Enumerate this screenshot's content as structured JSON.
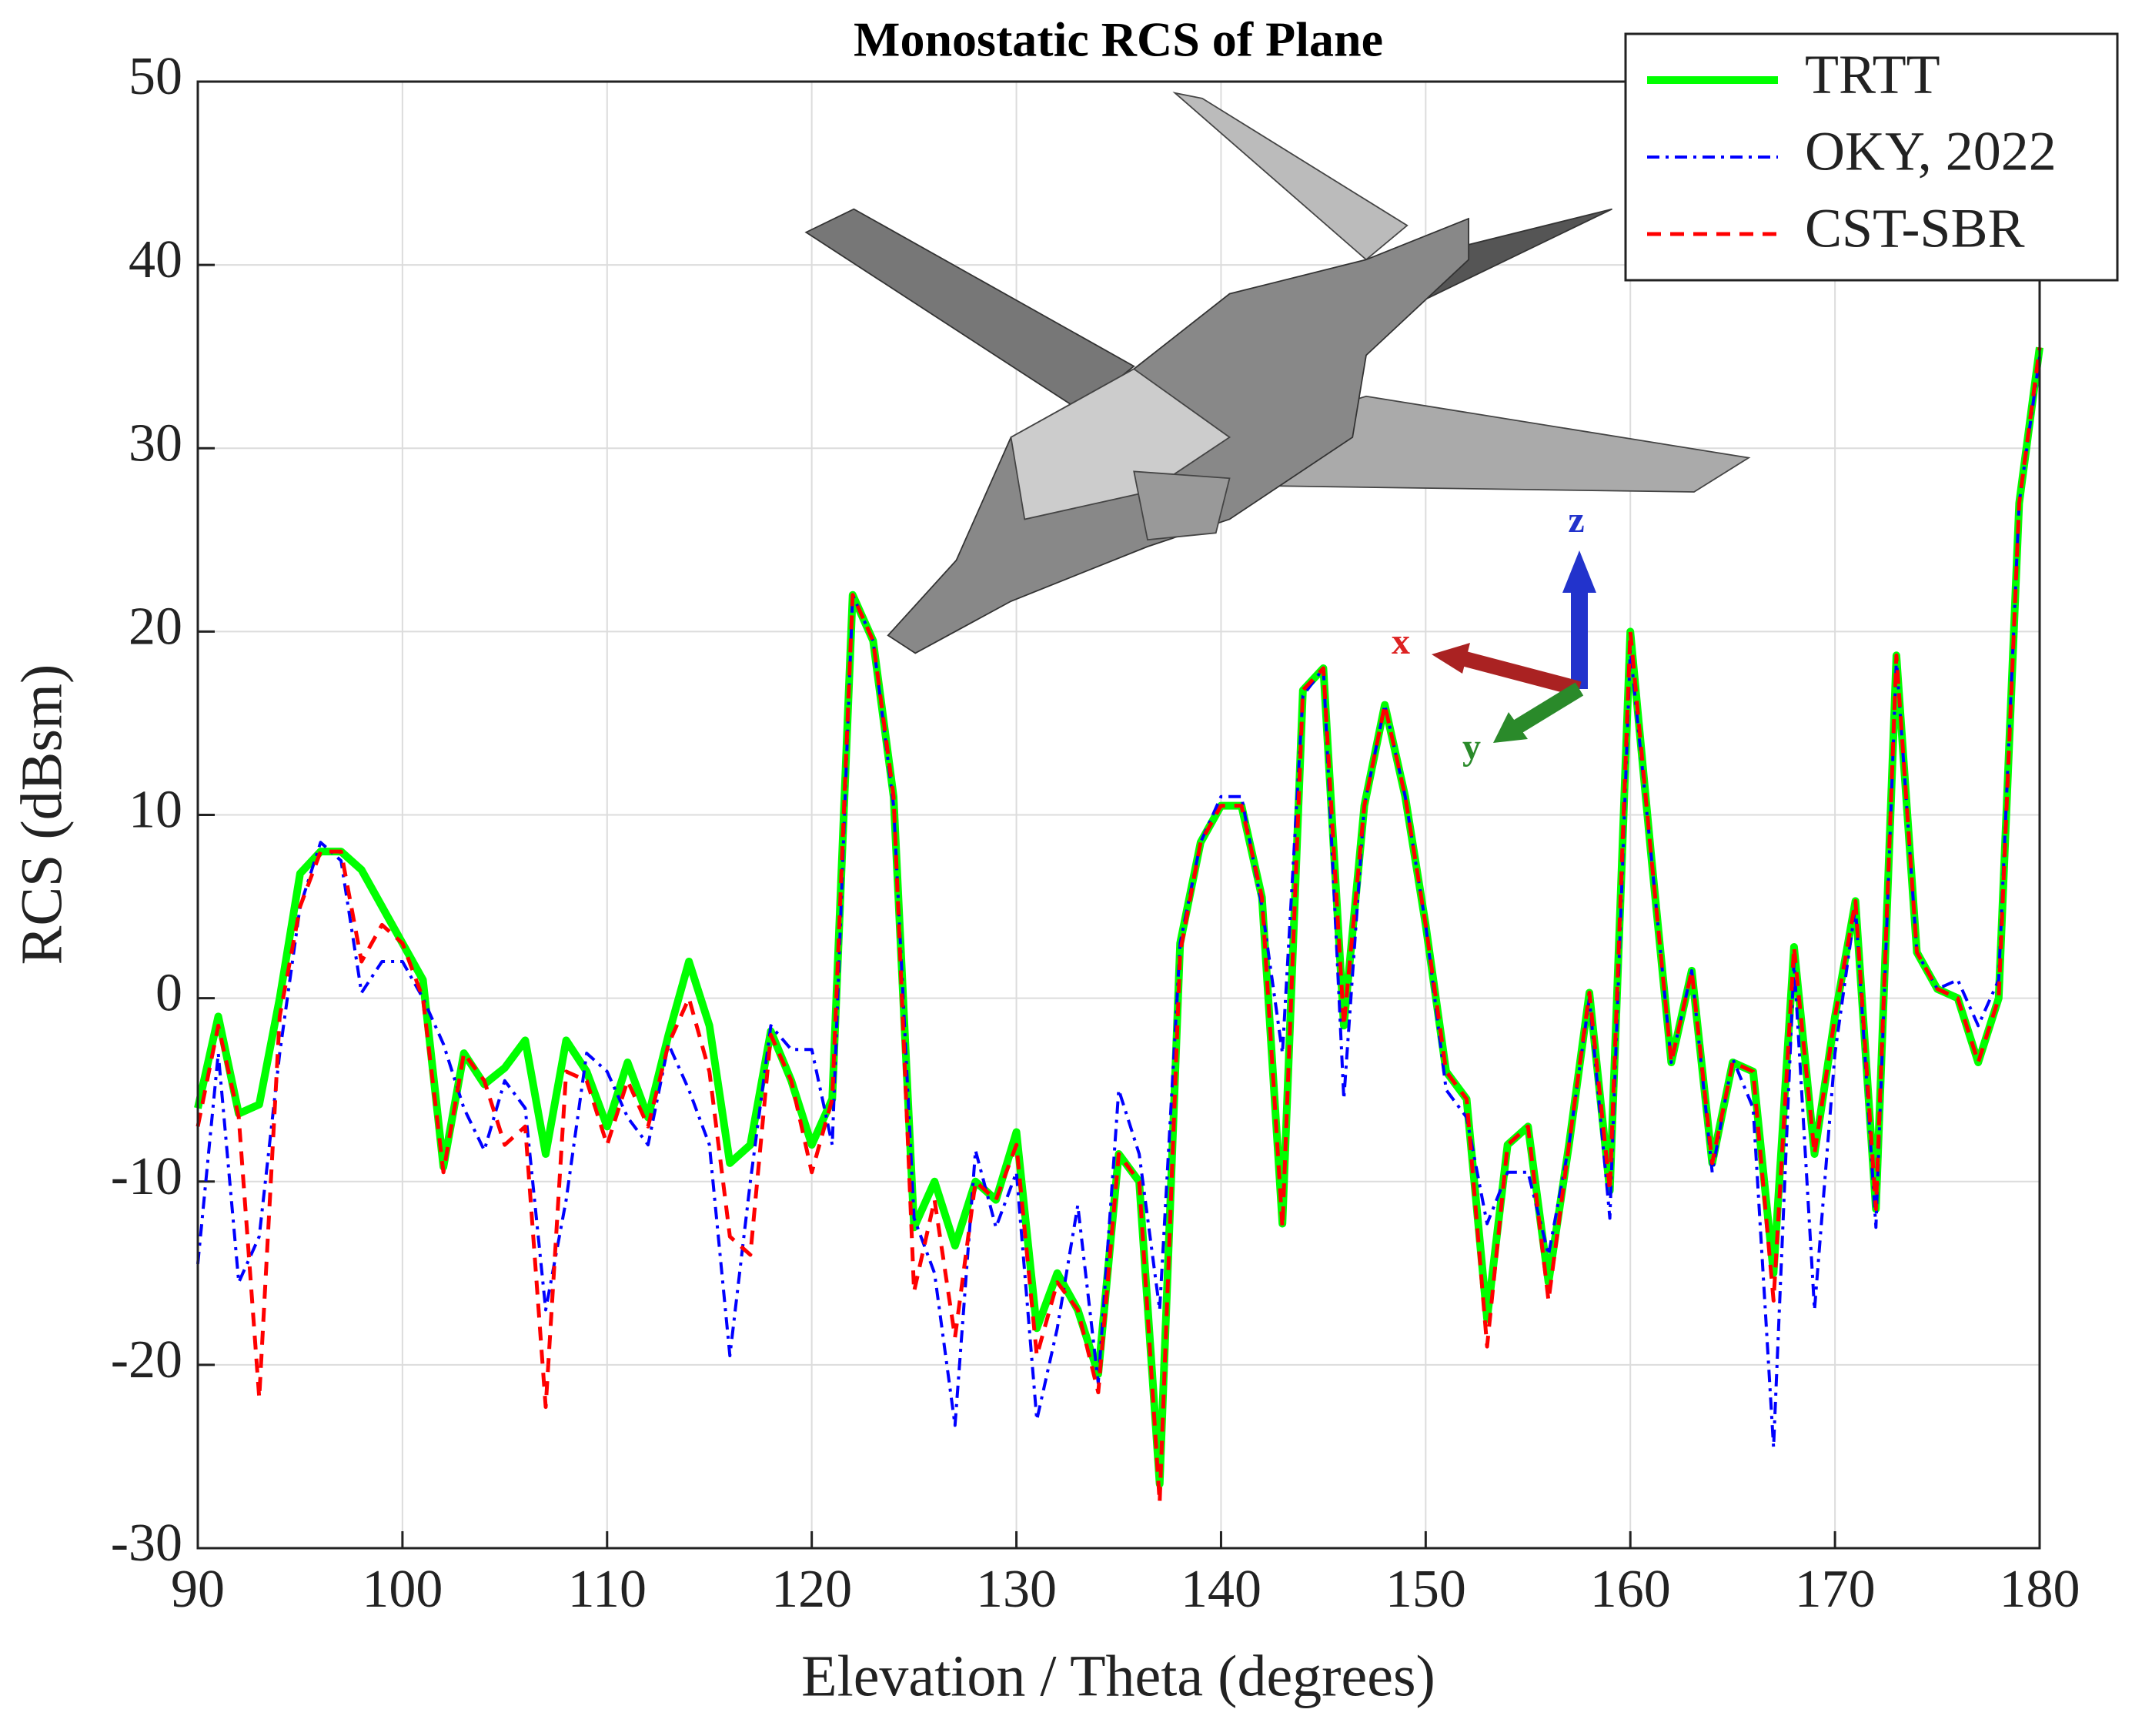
{
  "chart_data": {
    "type": "line",
    "title": "Monostatic RCS of Plane",
    "xlabel": "Elevation / Theta (degrees)",
    "ylabel": "RCS (dBsm)",
    "annotations": [
      "z",
      "x",
      "y"
    ],
    "x": [
      90,
      91,
      92,
      93,
      94,
      95,
      96,
      97,
      98,
      99,
      100,
      101,
      102,
      103,
      104,
      105,
      106,
      107,
      108,
      109,
      110,
      111,
      112,
      113,
      114,
      115,
      116,
      117,
      118,
      119,
      120,
      121,
      122,
      123,
      124,
      125,
      126,
      127,
      128,
      129,
      130,
      131,
      132,
      133,
      134,
      135,
      136,
      137,
      138,
      139,
      140,
      141,
      142,
      143,
      144,
      145,
      146,
      147,
      148,
      149,
      150,
      151,
      152,
      153,
      154,
      155,
      156,
      157,
      158,
      159,
      160,
      161,
      162,
      163,
      164,
      165,
      166,
      167,
      168,
      169,
      170,
      171,
      172,
      173,
      174,
      175,
      176,
      177,
      178,
      179,
      180
    ],
    "series": [
      {
        "name": "TRTT",
        "color": "#00ff00",
        "style": "solid",
        "values": [
          -6,
          -1,
          -6.3,
          -5.8,
          0,
          6.8,
          8,
          8,
          7,
          5,
          3,
          1,
          -9.2,
          -3,
          -4.7,
          -3.8,
          -2.3,
          -8.5,
          -2.3,
          -4,
          -7,
          -3.5,
          -6.5,
          -2,
          2,
          -1.5,
          -9,
          -8,
          -1.8,
          -4.5,
          -8,
          -5.5,
          22,
          19.5,
          11,
          -12.5,
          -10,
          -13.5,
          -10,
          -11,
          -7.3,
          -18,
          -15,
          -17,
          -20.5,
          -8.5,
          -10,
          -26.5,
          3,
          8.5,
          10.5,
          10.5,
          5.5,
          -12.3,
          16.8,
          18,
          -1.5,
          10.5,
          16,
          11,
          4,
          -4,
          -5.5,
          -17.5,
          -8,
          -7,
          -15.5,
          -8,
          0.3,
          -10.5,
          20,
          8,
          -3.5,
          1.5,
          -9,
          -3.5,
          -4,
          -15,
          2.8,
          -8.5,
          -1,
          5.3,
          -11.5,
          18.7,
          2.5,
          0.5,
          0,
          -3.5,
          0,
          27,
          35.5
        ]
      },
      {
        "name": "OKY, 2022",
        "color": "#0000ff",
        "style": "dashdot",
        "values": [
          -14.5,
          -3,
          -15.5,
          -13,
          -3,
          5,
          8.5,
          7.5,
          0.3,
          2,
          2,
          0,
          -2.5,
          -6,
          -8.3,
          -4.5,
          -6,
          -17,
          -11,
          -3,
          -4,
          -6.5,
          -8,
          -2.5,
          -5,
          -8,
          -19.5,
          -10,
          -1.5,
          -2.8,
          -2.8,
          -8,
          22,
          19.5,
          10.5,
          -12,
          -15,
          -23.3,
          -8.3,
          -12.5,
          -9.5,
          -23,
          -18,
          -11.3,
          -21,
          -5,
          -8.5,
          -17,
          3,
          8.5,
          11,
          11,
          5,
          -3,
          16.5,
          18,
          -5.5,
          10.5,
          16,
          11,
          4,
          -5,
          -6.5,
          -12.3,
          -9.5,
          -9.5,
          -14,
          -8,
          0,
          -12,
          19,
          8,
          -3.5,
          1.5,
          -9.5,
          -3.3,
          -6,
          -24.5,
          2,
          -17,
          -3,
          5,
          -12.5,
          18.5,
          2.5,
          0.5,
          1,
          -1.5,
          1,
          27,
          35
        ]
      },
      {
        "name": "CST-SBR",
        "color": "#ff0000",
        "style": "dashed",
        "values": [
          -7,
          -1.5,
          -6.5,
          -21.8,
          -1,
          5,
          8,
          8,
          2,
          4,
          3,
          0,
          -9.5,
          -3,
          -4.5,
          -8,
          -7,
          -22.3,
          -4,
          -4.5,
          -8,
          -4.5,
          -7,
          -2.5,
          0,
          -4,
          -13,
          -14,
          -2,
          -4.5,
          -9.5,
          -5.5,
          22,
          19.5,
          11,
          -16,
          -11,
          -18.5,
          -10,
          -11,
          -8,
          -19.5,
          -15.5,
          -17,
          -21.5,
          -8.5,
          -10,
          -27.5,
          2.5,
          8.5,
          10.5,
          10.5,
          5.5,
          -12.5,
          16.8,
          18,
          -1.5,
          10.5,
          16,
          11,
          4,
          -4,
          -5.5,
          -19,
          -8,
          -7,
          -16.5,
          -8,
          0.3,
          -10.5,
          20,
          8,
          -3.5,
          1.5,
          -9,
          -3.5,
          -4,
          -16.5,
          2.8,
          -8.5,
          -1,
          5.3,
          -11.5,
          18.7,
          2.5,
          0.5,
          0,
          -3.5,
          0,
          27,
          35.5
        ]
      }
    ],
    "xlim": [
      90,
      180
    ],
    "ylim": [
      -30,
      50
    ],
    "xticks": [
      90,
      100,
      110,
      120,
      130,
      140,
      150,
      160,
      170,
      180
    ],
    "yticks": [
      -30,
      -20,
      -10,
      0,
      10,
      20,
      30,
      40,
      50
    ],
    "grid": true,
    "legend": "upper right"
  }
}
